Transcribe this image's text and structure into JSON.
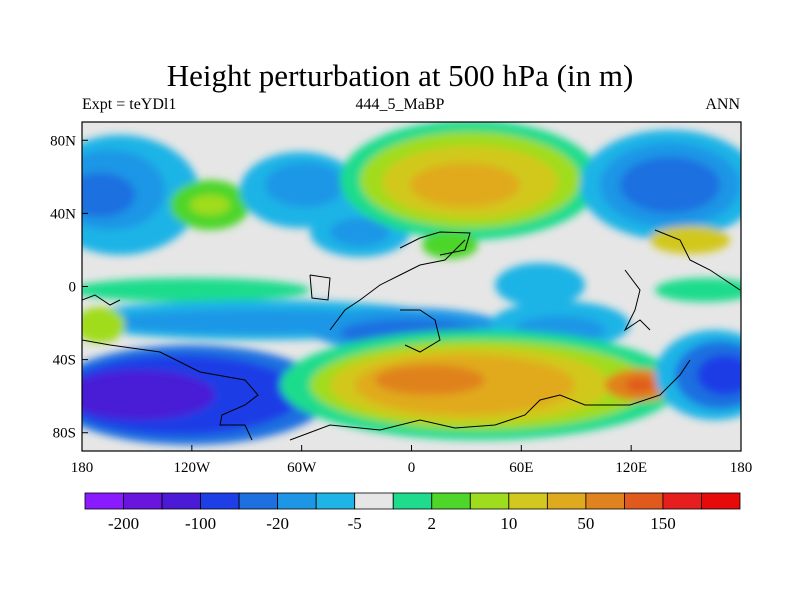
{
  "map": {
    "title": "Height perturbation at 500 hPa (in m)",
    "left_label": "Expt = teYDl1",
    "center_label": "444_5_MaBP",
    "right_label": "ANN",
    "projection": "cylindrical equidistant",
    "lon_range": [
      -180,
      180
    ],
    "lat_range": [
      -90,
      90
    ],
    "lon_ticks": [
      "180",
      "120W",
      "60W",
      "0",
      "60E",
      "120E",
      "180"
    ],
    "lat_ticks": [
      "80N",
      "40N",
      "0",
      "40S",
      "80S"
    ],
    "lat_tick_values": [
      80,
      40,
      0,
      -40,
      -80
    ],
    "missing_color": "#e6e6e6"
  },
  "colorbar": {
    "labels": [
      "-200",
      "-100",
      "-20",
      "-5",
      "2",
      "10",
      "50",
      "150"
    ],
    "colors": [
      "#8a1aff",
      "#6a14e0",
      "#4a1ad6",
      "#1e3ee6",
      "#1e6fe0",
      "#1e96e6",
      "#1eb4e6",
      "#e6e6e6",
      "#1edc8c",
      "#4ed62a",
      "#a0dc1e",
      "#d2c81e",
      "#e0aa1e",
      "#e0821e",
      "#e05a1e",
      "#e61e1e",
      "#e60a0a"
    ]
  }
}
